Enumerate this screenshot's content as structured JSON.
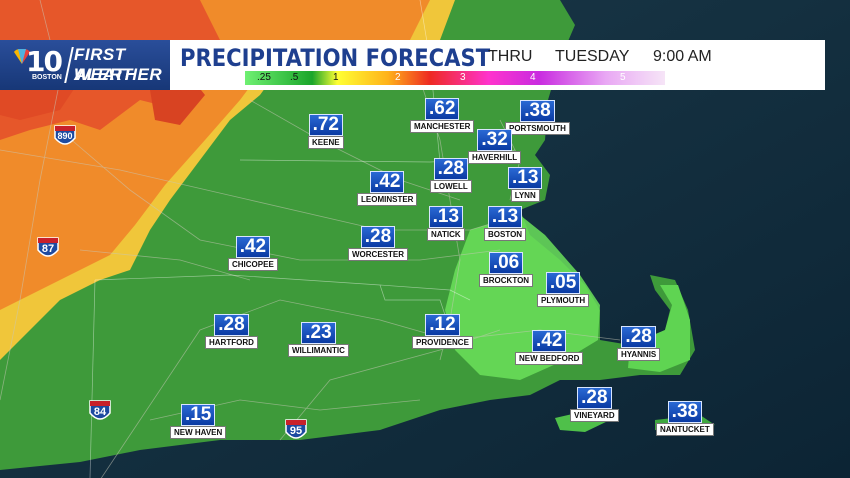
{
  "station": {
    "badge": "10",
    "city": "BOSTON",
    "line1": "FIRST ALERT",
    "line2": "WEATHER"
  },
  "title": "PRECIPITATION FORECAST",
  "period": "THRU",
  "day": "TUESDAY",
  "time": "9:00 AM",
  "scale_ticks": [
    ".25",
    ".5",
    "1",
    "2",
    "3",
    "4",
    "5"
  ],
  "colors": {
    "title": "#1e3f8f",
    "value_box": "#1a52c4",
    "rain_light": "#6ff072",
    "rain_mid": "#1aa52a",
    "rain_heavy": "#ee2a22"
  },
  "highways": [
    {
      "num": "890",
      "icon": "interstate-shield-icon"
    },
    {
      "num": "87",
      "icon": "interstate-shield-icon"
    },
    {
      "num": "84",
      "icon": "interstate-shield-icon"
    },
    {
      "num": "95",
      "icon": "interstate-shield-icon"
    }
  ],
  "locations": [
    {
      "name": "KEENE",
      "value": ".72"
    },
    {
      "name": "MANCHESTER",
      "value": ".62"
    },
    {
      "name": "PORTSMOUTH",
      "value": ".38"
    },
    {
      "name": "HAVERHILL",
      "value": ".32"
    },
    {
      "name": "LOWELL",
      "value": ".28"
    },
    {
      "name": "LEOMINSTER",
      "value": ".42"
    },
    {
      "name": "LYNN",
      "value": ".13"
    },
    {
      "name": "NATICK",
      "value": ".13"
    },
    {
      "name": "BOSTON",
      "value": ".13"
    },
    {
      "name": "WORCESTER",
      "value": ".28"
    },
    {
      "name": "CHICOPEE",
      "value": ".42"
    },
    {
      "name": "BROCKTON",
      "value": ".06"
    },
    {
      "name": "PLYMOUTH",
      "value": ".05"
    },
    {
      "name": "HARTFORD",
      "value": ".28"
    },
    {
      "name": "WILLIMANTIC",
      "value": ".23"
    },
    {
      "name": "PROVIDENCE",
      "value": ".12"
    },
    {
      "name": "NEW BEDFORD",
      "value": ".42"
    },
    {
      "name": "HYANNIS",
      "value": ".28"
    },
    {
      "name": "VINEYARD",
      "value": ".28"
    },
    {
      "name": "NANTUCKET",
      "value": ".38"
    },
    {
      "name": "NEW HAVEN",
      "value": ".15"
    }
  ]
}
